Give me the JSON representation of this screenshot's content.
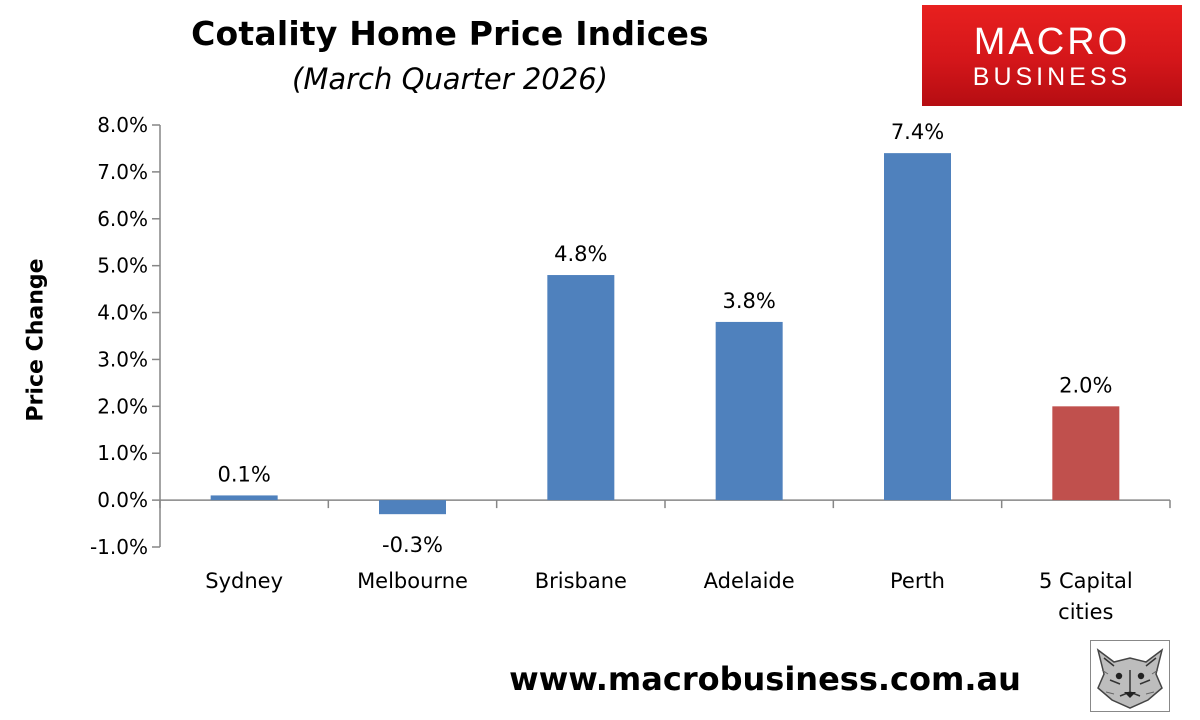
{
  "header": {
    "title": "Cotality Home Price Indices",
    "subtitle": "(March Quarter 2026)"
  },
  "logo": {
    "line1": "MACRO",
    "line2": "BUSINESS",
    "bg_color": "#d4161a"
  },
  "footer": {
    "url": "www.macrobusiness.com.au",
    "mascot_icon": "wolf-head-icon"
  },
  "chart_data": {
    "type": "bar",
    "title": "Cotality Home Price Indices",
    "subtitle": "(March Quarter 2026)",
    "xlabel": "",
    "ylabel": "Price Change",
    "categories": [
      "Sydney",
      "Melbourne",
      "Brisbane",
      "Adelaide",
      "Perth",
      "5 Capital cities"
    ],
    "category_lines": [
      [
        "Sydney"
      ],
      [
        "Melbourne"
      ],
      [
        "Brisbane"
      ],
      [
        "Adelaide"
      ],
      [
        "Perth"
      ],
      [
        "5 Capital",
        "cities"
      ]
    ],
    "values": [
      0.1,
      -0.3,
      4.8,
      3.8,
      7.4,
      2.0
    ],
    "data_labels": [
      "0.1%",
      "-0.3%",
      "4.8%",
      "3.8%",
      "7.4%",
      "2.0%"
    ],
    "ylim": [
      -1.0,
      8.0
    ],
    "yticks": [
      8.0,
      7.0,
      6.0,
      5.0,
      4.0,
      3.0,
      2.0,
      1.0,
      0.0,
      -1.0
    ],
    "ytick_labels": [
      "8.0%",
      "7.0%",
      "6.0%",
      "5.0%",
      "4.0%",
      "3.0%",
      "2.0%",
      "1.0%",
      "0.0%",
      "-1.0%"
    ],
    "bar_colors": [
      "#4f81bd",
      "#4f81bd",
      "#4f81bd",
      "#4f81bd",
      "#4f81bd",
      "#c0504d"
    ],
    "grid": false,
    "legend": "none"
  }
}
